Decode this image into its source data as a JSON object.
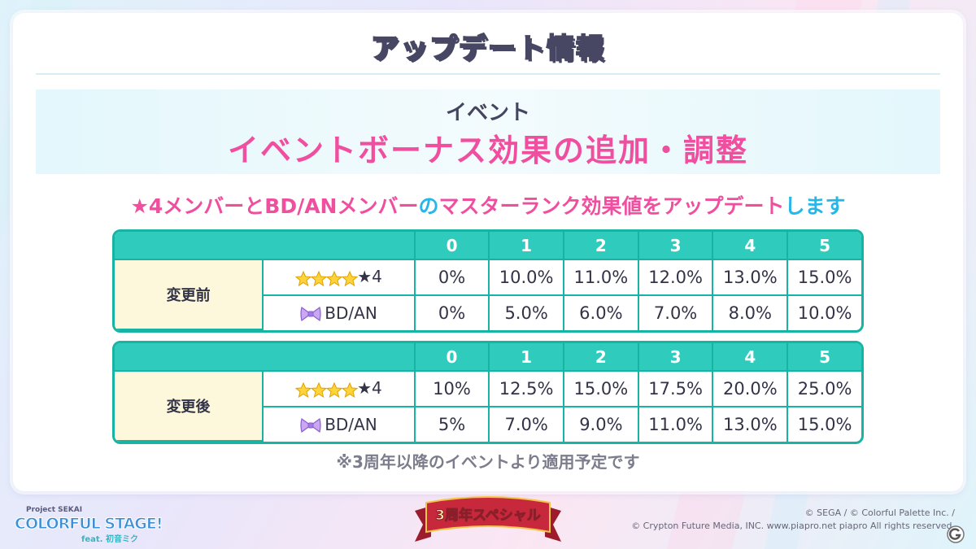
{
  "title": "アップデート情報",
  "band": {
    "sub": "イベント",
    "main": "イベントボーナス効果の追加・調整"
  },
  "headline": {
    "part1": "★4メンバーとBD/ANメンバー",
    "part2": "の",
    "part3": "マスターランク効果値をアップデート",
    "part4": "します"
  },
  "columns": [
    "0",
    "1",
    "2",
    "3",
    "4",
    "5"
  ],
  "tables": [
    {
      "group": "変更前",
      "rows": [
        {
          "label": "★4",
          "icon": "four-star-icons",
          "values": [
            "0%",
            "10.0%",
            "11.0%",
            "12.0%",
            "13.0%",
            "15.0%"
          ]
        },
        {
          "label": "BD/AN",
          "icon": "ribbon-bow-icon",
          "values": [
            "0%",
            "5.0%",
            "6.0%",
            "7.0%",
            "8.0%",
            "10.0%"
          ]
        }
      ]
    },
    {
      "group": "変更後",
      "rows": [
        {
          "label": "★4",
          "icon": "four-star-icons",
          "values": [
            "10%",
            "12.5%",
            "15.0%",
            "17.5%",
            "20.0%",
            "25.0%"
          ]
        },
        {
          "label": "BD/AN",
          "icon": "ribbon-bow-icon",
          "values": [
            "5%",
            "7.0%",
            "9.0%",
            "11.0%",
            "13.0%",
            "15.0%"
          ]
        }
      ]
    }
  ],
  "note": "※3周年以降のイベントより適用予定です",
  "footer": {
    "logo_small": "Project SEKAI",
    "logo_main": "COLORFUL STAGE!",
    "logo_feat": "feat. 初音ミク",
    "ribbon": "3周年スペシャル",
    "copyright1": "© SEGA / © Colorful Palette Inc. /",
    "copyright2": "© Crypton Future Media, INC. www.piapro.net piapro All rights reserved."
  },
  "colors": {
    "accent_pink": "#f04fa0",
    "accent_blue": "#27b6e8",
    "table_teal": "#2fcbbd",
    "group_cell": "#fdf8dc"
  }
}
